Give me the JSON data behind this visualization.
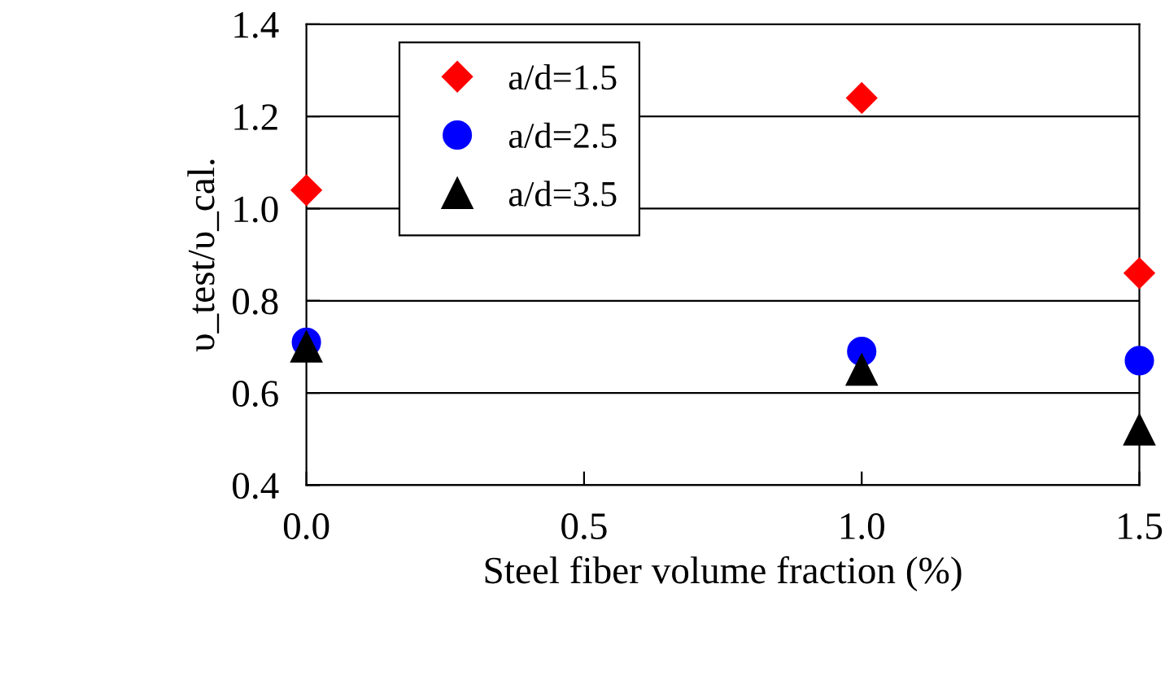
{
  "chart_data": {
    "type": "scatter",
    "xlabel": "Steel fiber volume fraction (%)",
    "ylabel": "υ_test/υ_cal.",
    "x": [
      0.0,
      1.0,
      1.5
    ],
    "series": [
      {
        "name": "a/d=1.5",
        "color": "#ff0000",
        "marker": "diamond",
        "values": [
          1.04,
          1.24,
          0.86
        ]
      },
      {
        "name": "a/d=2.5",
        "color": "#0000ff",
        "marker": "circle",
        "values": [
          0.71,
          0.69,
          0.67
        ]
      },
      {
        "name": "a/d=3.5",
        "color": "#000000",
        "marker": "triangle",
        "values": [
          0.7,
          0.65,
          0.52
        ]
      }
    ],
    "xlim": [
      0.0,
      1.5
    ],
    "xticks": [
      {
        "value": 0.0,
        "label": "0.0"
      },
      0.5,
      {
        "value": 1.0,
        "label": "1.0"
      },
      1.5
    ],
    "ylim": [
      0.4,
      1.4
    ],
    "yticks": [
      0.4,
      0.6,
      0.8,
      {
        "value": 1.0,
        "label": "1.0"
      },
      1.2,
      1.4
    ],
    "grid": "y",
    "legend": "top left"
  }
}
